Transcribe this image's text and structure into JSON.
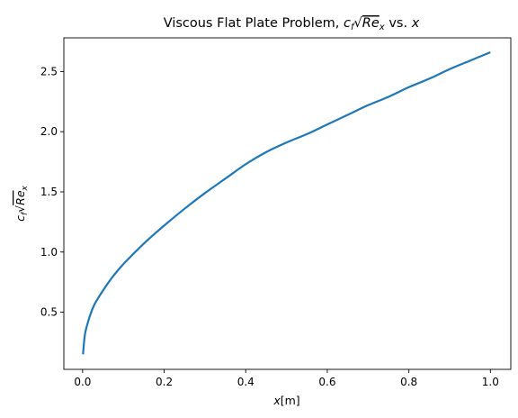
{
  "chart_data": {
    "type": "line",
    "title": {
      "prefix": "Viscous Flat Plate Problem, ",
      "math_cf": "c",
      "math_cf_sub": "f",
      "math_re": "Re",
      "math_re_sub": "x",
      "suffix_vs": " vs. ",
      "suffix_var": "x"
    },
    "xlabel": {
      "var": "x",
      "unit": "[m]"
    },
    "ylabel": {
      "math_cf": "c",
      "math_cf_sub": "f",
      "math_re": "Re",
      "math_re_sub": "x"
    },
    "xlim": [
      -0.046,
      1.05
    ],
    "ylim": [
      0.025,
      2.78
    ],
    "xticks": [
      0.0,
      0.2,
      0.4,
      0.6,
      0.8,
      1.0
    ],
    "xtick_labels": [
      "0.0",
      "0.2",
      "0.4",
      "0.6",
      "0.8",
      "1.0"
    ],
    "yticks": [
      0.5,
      1.0,
      1.5,
      2.0,
      2.5
    ],
    "ytick_labels": [
      "0.5",
      "1.0",
      "1.5",
      "2.0",
      "2.5"
    ],
    "grid": false,
    "series": [
      {
        "color": "#1f77b4",
        "x": [
          0.001,
          0.005,
          0.01,
          0.02,
          0.03,
          0.05,
          0.075,
          0.1,
          0.15,
          0.2,
          0.25,
          0.3,
          0.35,
          0.4,
          0.45,
          0.5,
          0.55,
          0.6,
          0.65,
          0.7,
          0.75,
          0.8,
          0.85,
          0.9,
          0.95,
          1.0
        ],
        "y": [
          0.15,
          0.3,
          0.38,
          0.49,
          0.57,
          0.68,
          0.8,
          0.9,
          1.07,
          1.22,
          1.36,
          1.49,
          1.61,
          1.73,
          1.83,
          1.91,
          1.98,
          2.06,
          2.14,
          2.22,
          2.29,
          2.37,
          2.44,
          2.52,
          2.59,
          2.66
        ]
      }
    ]
  }
}
